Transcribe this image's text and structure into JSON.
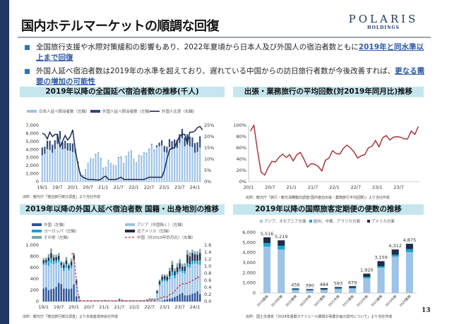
{
  "header": {
    "title": "国内ホテルマーケットの順調な回復",
    "logo_main": "POLARIS",
    "logo_sub": "HOLDINGS"
  },
  "bullets": [
    {
      "text": "全国旅行支援や水際対策緩和の影響もあり、2022年夏頃から日本人及び外国人の宿泊者数ともに",
      "highlight": "2019年と同水準以上まで回復"
    },
    {
      "text": "外国人延べ宿泊者数は2019年の水準を超えており、遅れている中国からの訪日旅行者数が今後改善すれば、",
      "highlight": "更なる需要の増加の可能性"
    }
  ],
  "colors": {
    "sidebar": "#1f3864",
    "band": "#c5e6ef",
    "highlight": "#2e5aa8"
  },
  "page_number": "13",
  "chart_data": [
    {
      "type": "bar",
      "title": "2019年以降の全国延べ宿泊者数の推移(千人)",
      "source": "出所：観光庁「宿泊旅行統計調査」より当社作成",
      "x_start": "2019-01",
      "xtick_labels": [
        "19/1",
        "19/7",
        "20/1",
        "20/7",
        "21/1",
        "21/7",
        "22/1",
        "22/7",
        "23/1",
        "23/7",
        "24/1"
      ],
      "yticks_left": [
        "0",
        "1,000",
        "2,000",
        "3,000",
        "4,000",
        "5,000",
        "6,000",
        "7,000"
      ],
      "yticks_right": [
        "0%",
        "5%",
        "10%",
        "15%",
        "20%",
        "25%"
      ],
      "ylim": [
        0,
        7000
      ],
      "ylim_right": [
        0,
        25
      ],
      "legend_position": "top",
      "series": [
        {
          "name": "日本人延べ宿泊者数（左軸）",
          "kind": "bar",
          "color": "#9dc3e6",
          "values": [
            3300,
            3450,
            4050,
            3950,
            3600,
            4050,
            4700,
            5300,
            4000,
            4100,
            3900,
            3850,
            3700,
            3600,
            2300,
            1100,
            850,
            1550,
            2350,
            2900,
            2850,
            3450,
            3650,
            2950,
            1700,
            1800,
            2700,
            2300,
            2100,
            2000,
            3000,
            3100,
            2300,
            3200,
            3700,
            3850,
            2800,
            2400,
            3300,
            3200,
            3600,
            3500,
            4000,
            4600,
            3900,
            4300,
            4400,
            4500,
            3700,
            3600,
            4300,
            4000,
            4300,
            4200,
            4800,
            5400,
            4400,
            4600,
            4400,
            4300,
            3600,
            3700,
            4250
          ]
        },
        {
          "name": "外国人延べ宿泊者数（左軸）",
          "kind": "bar",
          "color": "#2e4a7a",
          "values": [
            950,
            900,
            1050,
            1150,
            1000,
            1100,
            1150,
            1000,
            900,
            1000,
            900,
            950,
            1050,
            500,
            200,
            30,
            20,
            20,
            20,
            25,
            25,
            30,
            30,
            30,
            40,
            25,
            25,
            25,
            25,
            25,
            60,
            45,
            30,
            30,
            30,
            30,
            30,
            25,
            30,
            30,
            40,
            60,
            80,
            80,
            70,
            220,
            450,
            650,
            750,
            750,
            1000,
            1050,
            950,
            1000,
            1100,
            1150,
            1100,
            1300,
            1200,
            1200,
            1200,
            1200,
            1400
          ]
        },
        {
          "name": "外国人比率（右軸）",
          "kind": "line",
          "color": "#1c2a4a",
          "values": [
            21.5,
            21,
            19,
            22,
            20,
            21,
            21,
            15.5,
            18,
            20.5,
            18.5,
            20,
            23,
            14,
            8,
            3,
            2,
            1.5,
            1,
            1,
            1,
            0.8,
            0.8,
            1,
            2,
            2.5,
            1,
            1,
            1,
            1,
            1.5,
            2,
            1,
            1,
            1,
            1,
            1,
            1,
            1,
            1,
            1,
            1.5,
            2,
            2,
            2,
            2,
            2,
            2,
            5,
            10,
            14,
            15,
            15,
            18,
            20,
            21,
            21,
            17,
            22,
            22,
            22.5,
            24,
            24.5,
            23
          ]
        }
      ]
    },
    {
      "type": "line",
      "title": "出張・業務旅行の平均回数(対2019年同月比)推移",
      "source": "出所：観光庁「旅行・観光消費動向調査(国内宿泊出張・業務旅行平均回数)」より当社作成",
      "x_start": "2020-01",
      "xtick_labels": [
        "20/1",
        "20/7",
        "21/1",
        "21/7",
        "22/1",
        "22/7",
        "23/1",
        "23/7"
      ],
      "yticks": [
        "0%",
        "20%",
        "40%",
        "60%",
        "80%",
        "100%"
      ],
      "ylim": [
        0,
        100
      ],
      "series": [
        {
          "color": "#a5282c",
          "values": [
            90,
            100,
            55,
            17,
            12,
            25,
            36,
            35,
            43,
            49,
            43,
            48,
            37,
            48,
            52,
            40,
            26,
            32,
            31,
            27,
            19,
            38,
            42,
            55,
            50,
            49,
            59,
            65,
            60,
            53,
            42,
            46,
            48,
            60,
            63,
            73,
            62,
            78,
            82,
            74,
            79,
            80,
            79,
            76,
            76,
            90,
            84,
            98
          ]
        }
      ]
    },
    {
      "type": "bar",
      "stacked": true,
      "title": "2019年以降の外国人延べ宿泊者数 国籍・出身地別の推移",
      "source": "出所：観光庁「宿泊旅行統計調査」より本資産運用会社作成",
      "x_start": "2019-01",
      "xtick_labels": [
        "19/1",
        "19/7",
        "20/1",
        "20/7",
        "21/1",
        "21/7",
        "22/1",
        "22/7",
        "23/1",
        "23/7",
        "24/1"
      ],
      "yticks_left": [
        "0",
        "200",
        "400",
        "600",
        "800",
        "1,000"
      ],
      "yticks_right": [
        "0.0",
        "0.2",
        "0.4",
        "0.6",
        "0.8",
        "1.0",
        "1.2",
        "1.4",
        "1.6"
      ],
      "ylim": [
        0,
        1000
      ],
      "ylim_right": [
        0,
        1.6
      ],
      "series": [
        {
          "name": "中国（左軸）",
          "kind": "bar",
          "color": "#2f5597",
          "values": [
            230,
            250,
            200,
            220,
            230,
            260,
            330,
            310,
            230,
            230,
            220,
            230,
            300,
            90,
            15,
            2,
            1,
            1,
            1,
            1,
            1,
            1,
            1,
            1,
            1,
            1,
            1,
            1,
            1,
            1,
            1,
            1,
            1,
            1,
            1,
            1,
            1,
            1,
            1,
            1,
            1,
            1,
            2,
            2,
            3,
            5,
            8,
            12,
            30,
            40,
            50,
            60,
            80,
            100,
            130,
            150,
            110,
            110,
            120,
            140,
            150,
            180,
            130
          ]
        },
        {
          "name": "アジア（中国除く）（左軸）",
          "kind": "bar",
          "color": "#9dc3e6",
          "values": [
            420,
            400,
            430,
            460,
            430,
            420,
            370,
            290,
            310,
            370,
            330,
            360,
            420,
            200,
            50,
            8,
            6,
            6,
            6,
            7,
            7,
            8,
            8,
            8,
            9,
            8,
            8,
            8,
            8,
            8,
            20,
            15,
            8,
            8,
            8,
            8,
            8,
            7,
            8,
            8,
            10,
            15,
            25,
            25,
            25,
            130,
            270,
            340,
            330,
            310,
            340,
            400,
            330,
            380,
            400,
            360,
            380,
            500,
            480,
            520,
            520,
            480,
            520
          ]
        },
        {
          "name": "ヨーロッパ（左軸）",
          "kind": "bar",
          "color": "#1aa3d6",
          "values": [
            30,
            40,
            90,
            90,
            60,
            50,
            40,
            50,
            50,
            60,
            40,
            50,
            40,
            40,
            15,
            2,
            2,
            2,
            2,
            2,
            2,
            3,
            3,
            3,
            3,
            2,
            2,
            2,
            2,
            2,
            10,
            5,
            3,
            3,
            3,
            3,
            3,
            2,
            3,
            3,
            4,
            6,
            8,
            8,
            6,
            20,
            30,
            30,
            30,
            30,
            60,
            70,
            50,
            40,
            50,
            40,
            50,
            70,
            60,
            60,
            50,
            60,
            80
          ]
        },
        {
          "name": "北アメリカ（左軸）",
          "kind": "bar",
          "color": "#1f2d4a",
          "values": [
            50,
            50,
            60,
            90,
            60,
            60,
            70,
            40,
            60,
            70,
            50,
            70,
            60,
            40,
            10,
            2,
            2,
            2,
            2,
            2,
            2,
            3,
            3,
            3,
            4,
            3,
            3,
            3,
            3,
            3,
            8,
            6,
            4,
            4,
            4,
            4,
            4,
            3,
            4,
            4,
            5,
            8,
            10,
            10,
            10,
            30,
            50,
            60,
            60,
            60,
            90,
            120,
            80,
            90,
            100,
            70,
            80,
            150,
            140,
            140,
            120,
            110,
            130
          ]
        },
        {
          "name": "その他（左軸）",
          "kind": "bar",
          "color": "#7fa3a6",
          "values": [
            40,
            40,
            60,
            80,
            50,
            40,
            50,
            30,
            50,
            60,
            40,
            50,
            40,
            30,
            10,
            3,
            3,
            3,
            3,
            3,
            3,
            4,
            4,
            4,
            5,
            4,
            4,
            4,
            4,
            4,
            15,
            8,
            5,
            5,
            5,
            5,
            5,
            4,
            5,
            5,
            6,
            8,
            10,
            10,
            8,
            20,
            30,
            40,
            30,
            40,
            60,
            70,
            50,
            70,
            70,
            50,
            60,
            80,
            70,
            60,
            50,
            60,
            70
          ]
        },
        {
          "name": "中国（対2019年同月比）（右軸）",
          "kind": "dashed-line",
          "color": "#c0282e",
          "values": [
            null,
            null,
            null,
            null,
            null,
            null,
            null,
            null,
            null,
            null,
            null,
            1.35,
            1.35,
            0.55,
            0.05,
            0.02,
            0.02,
            0.02,
            0.02,
            0.02,
            0.02,
            0.02,
            0.02,
            0.02,
            0.03,
            0.02,
            0.02,
            0.02,
            0.02,
            0.02,
            0.02,
            0.02,
            0.02,
            0.02,
            0.02,
            0.02,
            0.02,
            0.02,
            0.02,
            0.02,
            0.02,
            0.02,
            0.02,
            0.02,
            0.02,
            0.05,
            0.1,
            0.1,
            0.15,
            0.12,
            0.2,
            0.22,
            0.3,
            0.38,
            0.45,
            0.5,
            0.5,
            0.52,
            0.55,
            0.6,
            0.62,
            0.7,
            0.66
          ]
        }
      ]
    },
    {
      "type": "bar",
      "stacked": true,
      "title": "2019年以降の国際旅客定期便の便数の推移",
      "source": "出所：国土交通省「2024年夏期スケジュール期間の事業計画の認可について」より当社作成",
      "categories": [
        "2019夏期",
        "2019冬期",
        "2020夏期",
        "2020冬期",
        "2021夏期",
        "2021冬期",
        "2022夏期",
        "2022冬期",
        "2023夏期",
        "2023冬期",
        "2024夏期"
      ],
      "yticks": [
        "0",
        "1,000",
        "2,000",
        "3,000",
        "4,000",
        "5,000",
        "6,000"
      ],
      "ylim": [
        0,
        6000
      ],
      "totals": [
        "5,516",
        "5,219",
        "456",
        "390",
        "484",
        "593",
        "679",
        "1,920",
        "3,159",
        "4,312",
        "4,875"
      ],
      "series": [
        {
          "name": "アジア、オセアニア方面",
          "color": "#9dc3e6",
          "values": [
            4600,
            4300,
            300,
            250,
            300,
            400,
            450,
            1450,
            2500,
            3600,
            4050
          ]
        },
        {
          "name": "欧州、中東、アフリカ方面",
          "color": "#1aa3d6",
          "values": [
            350,
            380,
            50,
            40,
            50,
            60,
            60,
            150,
            150,
            200,
            300
          ]
        },
        {
          "name": "アメリカ方面",
          "color": "#1f2d4a",
          "values": [
            566,
            539,
            106,
            100,
            134,
            133,
            169,
            320,
            509,
            512,
            525
          ]
        }
      ]
    }
  ]
}
